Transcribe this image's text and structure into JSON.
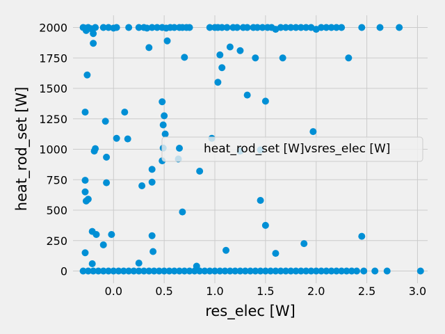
{
  "chart_data": {
    "type": "scatter",
    "xlabel": "res_elec [W]",
    "ylabel": "heat_rod_set [W]",
    "xlim": [
      -0.4,
      3.1
    ],
    "ylim": [
      -100,
      2100
    ],
    "xticks": [
      "0.0",
      "0.5",
      "1.0",
      "1.5",
      "2.0",
      "2.5",
      "3.0"
    ],
    "yticks": [
      "0",
      "250",
      "500",
      "750",
      "1000",
      "1250",
      "1500",
      "1750",
      "2000"
    ],
    "grid": true,
    "legend_placement": "center-right",
    "marker_color": "#008fd5",
    "series": [
      {
        "name": "heat_rod_set [W]vsres_elec [W]",
        "points": [
          [
            -0.3,
            2000
          ],
          [
            -0.28,
            1995
          ],
          [
            -0.27,
            1975
          ],
          [
            -0.25,
            2000
          ],
          [
            -0.22,
            1990
          ],
          [
            -0.2,
            1950
          ],
          [
            -0.18,
            2000
          ],
          [
            -0.1,
            2000
          ],
          [
            -0.05,
            2000
          ],
          [
            0.0,
            1995
          ],
          [
            0.03,
            2000
          ],
          [
            0.15,
            2000
          ],
          [
            0.25,
            2000
          ],
          [
            0.3,
            2000
          ],
          [
            0.33,
            1995
          ],
          [
            0.38,
            2000
          ],
          [
            0.43,
            2000
          ],
          [
            0.48,
            2000
          ],
          [
            0.52,
            1995
          ],
          [
            0.56,
            2000
          ],
          [
            0.6,
            2000
          ],
          [
            0.65,
            2000
          ],
          [
            0.68,
            2000
          ],
          [
            0.72,
            2000
          ],
          [
            0.75,
            2000
          ],
          [
            0.95,
            2000
          ],
          [
            1.0,
            2000
          ],
          [
            1.03,
            2000
          ],
          [
            1.07,
            2000
          ],
          [
            1.12,
            2000
          ],
          [
            1.18,
            2000
          ],
          [
            1.22,
            2000
          ],
          [
            1.28,
            2000
          ],
          [
            1.32,
            2000
          ],
          [
            1.38,
            2000
          ],
          [
            1.42,
            2000
          ],
          [
            1.47,
            2000
          ],
          [
            1.52,
            2000
          ],
          [
            1.56,
            2000
          ],
          [
            1.6,
            1985
          ],
          [
            1.65,
            2000
          ],
          [
            1.7,
            2000
          ],
          [
            1.75,
            2000
          ],
          [
            1.8,
            2000
          ],
          [
            1.85,
            2000
          ],
          [
            1.9,
            2000
          ],
          [
            1.95,
            2000
          ],
          [
            2.0,
            1985
          ],
          [
            2.05,
            2000
          ],
          [
            2.1,
            2000
          ],
          [
            2.15,
            2000
          ],
          [
            2.2,
            2000
          ],
          [
            2.25,
            2000
          ],
          [
            2.45,
            2000
          ],
          [
            2.63,
            2000
          ],
          [
            2.82,
            2000
          ],
          [
            -0.2,
            1870
          ],
          [
            0.35,
            1835
          ],
          [
            0.53,
            1890
          ],
          [
            0.7,
            1755
          ],
          [
            1.05,
            1775
          ],
          [
            1.15,
            1840
          ],
          [
            1.25,
            1810
          ],
          [
            1.4,
            1750
          ],
          [
            1.67,
            1750
          ],
          [
            2.32,
            1750
          ],
          [
            -0.26,
            1610
          ],
          [
            1.07,
            1670
          ],
          [
            1.03,
            1550
          ],
          [
            1.32,
            1445
          ],
          [
            1.5,
            1395
          ],
          [
            0.48,
            1390
          ],
          [
            -0.28,
            1305
          ],
          [
            0.11,
            1305
          ],
          [
            0.5,
            1275
          ],
          [
            -0.08,
            1230
          ],
          [
            0.49,
            1200
          ],
          [
            0.51,
            1125
          ],
          [
            1.97,
            1145
          ],
          [
            0.03,
            1090
          ],
          [
            0.14,
            1085
          ],
          [
            0.97,
            1090
          ],
          [
            -0.18,
            1005
          ],
          [
            -0.19,
            985
          ],
          [
            0.49,
            1010
          ],
          [
            1.25,
            985
          ],
          [
            1.45,
            995
          ],
          [
            -0.07,
            935
          ],
          [
            0.64,
            920
          ],
          [
            0.48,
            905
          ],
          [
            0.38,
            835
          ],
          [
            0.85,
            820
          ],
          [
            -0.28,
            745
          ],
          [
            -0.07,
            725
          ],
          [
            0.28,
            700
          ],
          [
            0.38,
            730
          ],
          [
            -0.28,
            650
          ],
          [
            -0.25,
            590
          ],
          [
            -0.27,
            575
          ],
          [
            1.45,
            580
          ],
          [
            0.68,
            485
          ],
          [
            1.5,
            375
          ],
          [
            -0.21,
            325
          ],
          [
            -0.17,
            300
          ],
          [
            -0.02,
            300
          ],
          [
            0.38,
            290
          ],
          [
            2.45,
            285
          ],
          [
            -0.1,
            215
          ],
          [
            1.88,
            225
          ],
          [
            1.11,
            170
          ],
          [
            -0.28,
            150
          ],
          [
            0.39,
            160
          ],
          [
            1.6,
            145
          ],
          [
            -0.21,
            60
          ],
          [
            0.25,
            65
          ],
          [
            0.82,
            40
          ],
          [
            -0.3,
            0
          ],
          [
            -0.25,
            0
          ],
          [
            -0.2,
            0
          ],
          [
            -0.15,
            0
          ],
          [
            -0.1,
            0
          ],
          [
            -0.05,
            0
          ],
          [
            0.0,
            0
          ],
          [
            0.05,
            0
          ],
          [
            0.1,
            0
          ],
          [
            0.15,
            0
          ],
          [
            0.2,
            0
          ],
          [
            0.25,
            0
          ],
          [
            0.3,
            0
          ],
          [
            0.35,
            0
          ],
          [
            0.4,
            0
          ],
          [
            0.45,
            0
          ],
          [
            0.5,
            0
          ],
          [
            0.55,
            0
          ],
          [
            0.6,
            0
          ],
          [
            0.65,
            0
          ],
          [
            0.7,
            0
          ],
          [
            0.75,
            0
          ],
          [
            0.8,
            0
          ],
          [
            0.85,
            0
          ],
          [
            0.9,
            0
          ],
          [
            0.95,
            0
          ],
          [
            1.0,
            0
          ],
          [
            1.05,
            0
          ],
          [
            1.1,
            0
          ],
          [
            1.15,
            0
          ],
          [
            1.2,
            0
          ],
          [
            1.25,
            0
          ],
          [
            1.3,
            0
          ],
          [
            1.35,
            0
          ],
          [
            1.4,
            0
          ],
          [
            1.45,
            0
          ],
          [
            1.5,
            0
          ],
          [
            1.55,
            0
          ],
          [
            1.6,
            0
          ],
          [
            1.65,
            0
          ],
          [
            1.7,
            0
          ],
          [
            1.75,
            0
          ],
          [
            1.8,
            0
          ],
          [
            1.85,
            0
          ],
          [
            1.9,
            0
          ],
          [
            1.95,
            0
          ],
          [
            2.0,
            0
          ],
          [
            2.05,
            0
          ],
          [
            2.1,
            0
          ],
          [
            2.15,
            0
          ],
          [
            2.2,
            0
          ],
          [
            2.25,
            0
          ],
          [
            2.3,
            0
          ],
          [
            2.35,
            0
          ],
          [
            2.4,
            0
          ],
          [
            2.47,
            0
          ],
          [
            2.58,
            0
          ],
          [
            2.7,
            0
          ],
          [
            3.03,
            0
          ]
        ]
      }
    ]
  }
}
